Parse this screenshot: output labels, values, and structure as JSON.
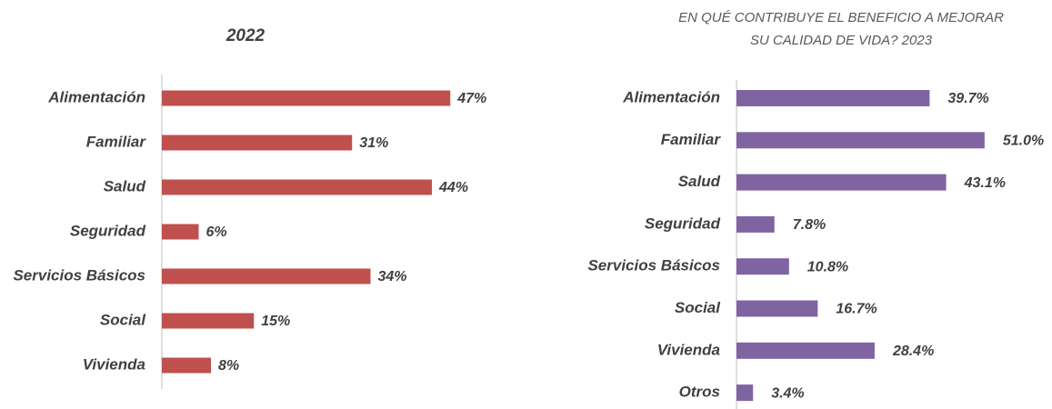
{
  "chart_data": [
    {
      "type": "bar",
      "orientation": "horizontal",
      "title": [
        "2022"
      ],
      "color": "#c0504d",
      "categories": [
        "Alimentación",
        "Familiar",
        "Salud",
        "Seguridad",
        "Servicios Básicos",
        "Social",
        "Vivienda"
      ],
      "values": [
        47,
        31,
        44,
        6,
        34,
        15,
        8
      ],
      "value_labels": [
        "47%",
        "31%",
        "44%",
        "6%",
        "34%",
        "15%",
        "8%"
      ]
    },
    {
      "type": "bar",
      "orientation": "horizontal",
      "title": [
        "EN QUÉ CONTRIBUYE EL BENEFICIO A MEJORAR",
        "SU CALIDAD DE VIDA? 2023"
      ],
      "color": "#8064a2",
      "categories": [
        "Alimentación",
        "Familiar",
        "Salud",
        "Seguridad",
        "Servicios Básicos",
        "Social",
        "Vivienda",
        "Otros"
      ],
      "values": [
        39.7,
        51.0,
        43.1,
        7.8,
        10.8,
        16.7,
        28.4,
        3.4
      ],
      "value_labels": [
        "39.7%",
        "51.0%",
        "43.1%",
        "7.8%",
        "10.8%",
        "16.7%",
        "28.4%",
        "3.4%"
      ]
    }
  ]
}
